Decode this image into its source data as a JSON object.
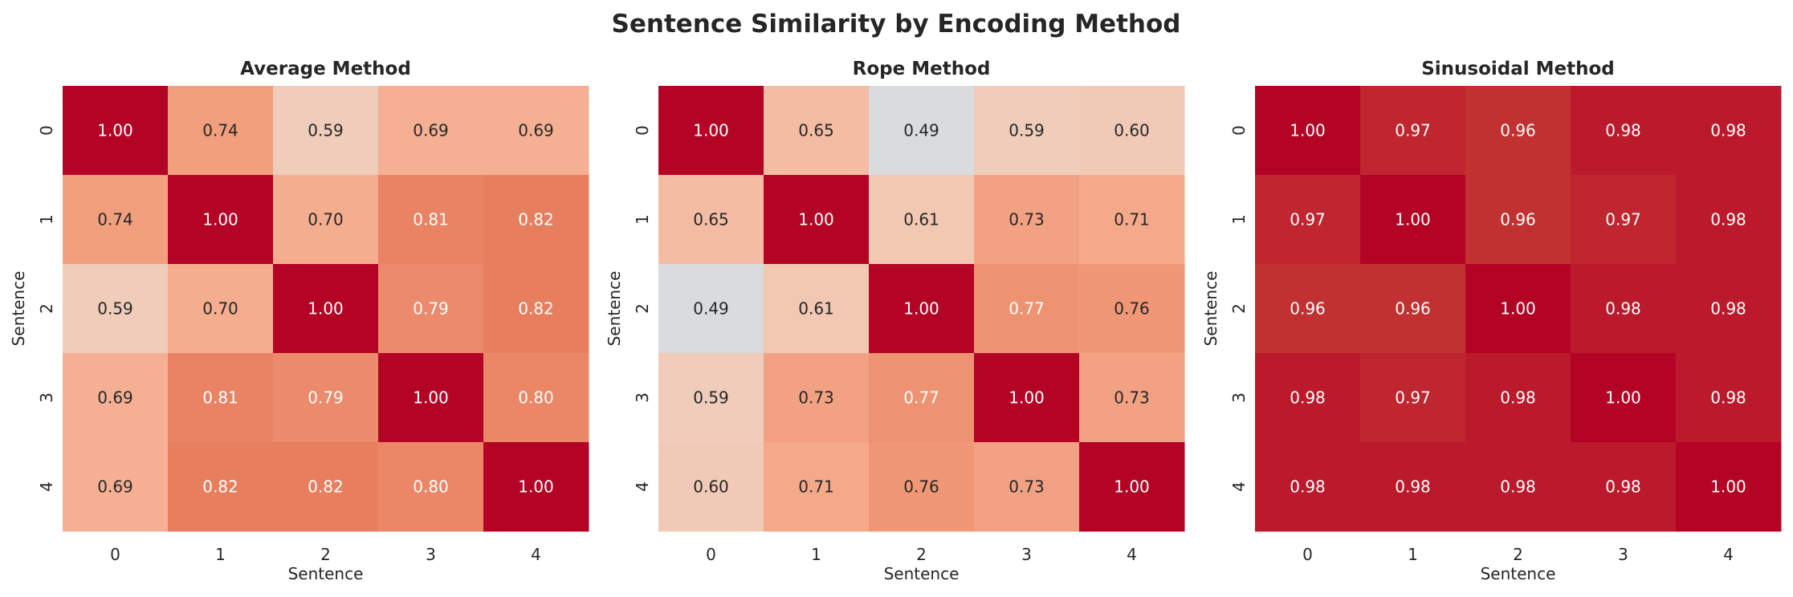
{
  "chart_data": {
    "title": "Sentence Similarity by Encoding Method",
    "colormap": "coolwarm",
    "vmin": 0,
    "vmax": 1,
    "panels": [
      {
        "type": "heatmap",
        "title": "Average Method",
        "xlabel": "Sentence",
        "ylabel": "Sentence",
        "x_ticks": [
          "0",
          "1",
          "2",
          "3",
          "4"
        ],
        "y_ticks": [
          "0",
          "1",
          "2",
          "3",
          "4"
        ],
        "values": [
          [
            1.0,
            0.74,
            0.59,
            0.69,
            0.69
          ],
          [
            0.74,
            1.0,
            0.7,
            0.81,
            0.82
          ],
          [
            0.59,
            0.7,
            1.0,
            0.79,
            0.82
          ],
          [
            0.69,
            0.81,
            0.79,
            1.0,
            0.8
          ],
          [
            0.69,
            0.82,
            0.82,
            0.8,
            1.0
          ]
        ]
      },
      {
        "type": "heatmap",
        "title": "Rope Method",
        "xlabel": "Sentence",
        "ylabel": "Sentence",
        "x_ticks": [
          "0",
          "1",
          "2",
          "3",
          "4"
        ],
        "y_ticks": [
          "0",
          "1",
          "2",
          "3",
          "4"
        ],
        "values": [
          [
            1.0,
            0.65,
            0.49,
            0.59,
            0.6
          ],
          [
            0.65,
            1.0,
            0.61,
            0.73,
            0.71
          ],
          [
            0.49,
            0.61,
            1.0,
            0.77,
            0.76
          ],
          [
            0.59,
            0.73,
            0.77,
            1.0,
            0.73
          ],
          [
            0.6,
            0.71,
            0.76,
            0.73,
            1.0
          ]
        ]
      },
      {
        "type": "heatmap",
        "title": "Sinusoidal Method",
        "xlabel": "Sentence",
        "ylabel": "Sentence",
        "x_ticks": [
          "0",
          "1",
          "2",
          "3",
          "4"
        ],
        "y_ticks": [
          "0",
          "1",
          "2",
          "3",
          "4"
        ],
        "values": [
          [
            1.0,
            0.97,
            0.96,
            0.98,
            0.98
          ],
          [
            0.97,
            1.0,
            0.96,
            0.97,
            0.98
          ],
          [
            0.96,
            0.96,
            1.0,
            0.98,
            0.98
          ],
          [
            0.98,
            0.97,
            0.98,
            1.0,
            0.98
          ],
          [
            0.98,
            0.98,
            0.98,
            0.98,
            1.0
          ]
        ]
      }
    ]
  }
}
